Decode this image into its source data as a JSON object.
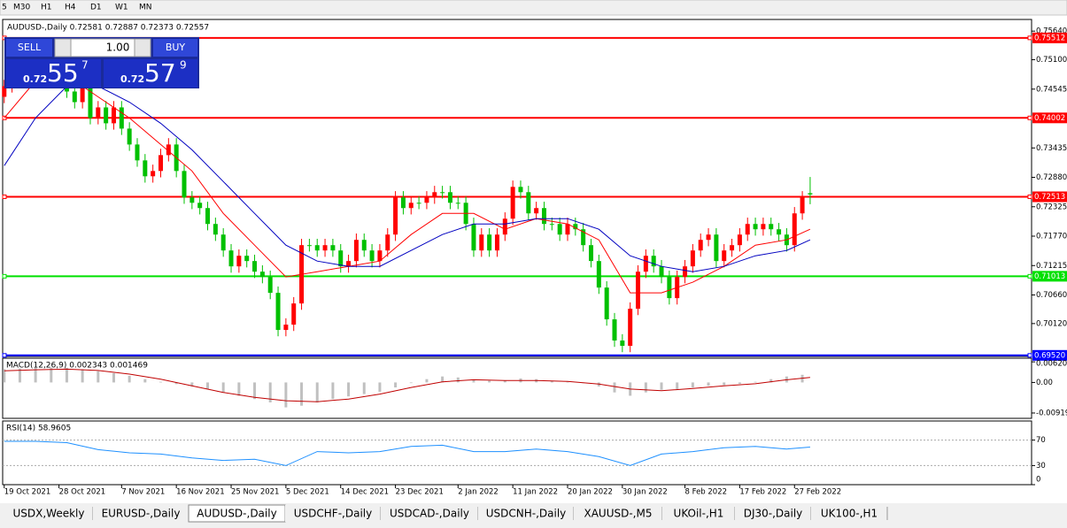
{
  "toolbar": {
    "buttons": [
      "5",
      "M30",
      "H1",
      "H4",
      "D1",
      "W1",
      "MN"
    ]
  },
  "trade_panel": {
    "sell": "SELL",
    "lot": "1.00",
    "buy": "BUY",
    "sell_prefix": "0.72",
    "sell_big": "55",
    "sell_small": "7",
    "buy_prefix": "0.72",
    "buy_big": "57",
    "buy_small": "9"
  },
  "tabs": [
    "USDX,Weekly",
    "EURUSD-,Daily",
    "AUDUSD-,Daily",
    "USDCHF-,Daily",
    "USDCAD-,Daily",
    "USDCNH-,Daily",
    "XAUUSD-,M5",
    "UKOil-,H1",
    "DJ30-,Daily",
    "UK100-,H1"
  ],
  "active_tab": 2,
  "chart_data": [
    {
      "type": "candlestick",
      "title": "AUDUSD-,Daily  0.72581 0.72887 0.72373 0.72557",
      "up_color": "#ff0000",
      "down_color": "#00c000",
      "xlim": [
        -0.2,
        131.3
      ],
      "ylim": [
        0.695,
        0.7586
      ],
      "yticks": [
        {
          "value": 0.7564,
          "label": "0.75640"
        },
        {
          "value": 0.751,
          "label": "0.75100"
        },
        0.74545,
        0.73435,
        {
          "value": 0.7288,
          "label": "0.72880"
        },
        0.72325,
        {
          "value": 0.7177,
          "label": "0.71770"
        },
        0.71215,
        {
          "value": 0.7066,
          "label": "0.70660"
        },
        {
          "value": 0.7012,
          "label": "0.70120"
        }
      ],
      "xticks": [
        {
          "value": 0,
          "label": "19 Oct 2021"
        },
        {
          "value": 7,
          "label": "28 Oct 2021"
        },
        {
          "value": 15,
          "label": "7 Nov 2021"
        },
        {
          "value": 22,
          "label": "16 Nov 2021"
        },
        {
          "value": 29,
          "label": "25 Nov 2021"
        },
        {
          "value": 36,
          "label": "5 Dec 2021"
        },
        {
          "value": 43,
          "label": "14 Dec 2021"
        },
        {
          "value": 50,
          "label": "23 Dec 2021"
        },
        {
          "value": 58,
          "label": "2 Jan 2022"
        },
        {
          "value": 65,
          "label": "11 Jan 2022"
        },
        {
          "value": 72,
          "label": "20 Jan 2022"
        },
        {
          "value": 79,
          "label": "30 Jan 2022"
        },
        {
          "value": 87,
          "label": "8 Feb 2022"
        },
        {
          "value": 94,
          "label": "17 Feb 2022"
        },
        {
          "value": 101,
          "label": "27 Feb 2022"
        }
      ],
      "levels": [
        {
          "value": 0.75512,
          "label": "0.75512",
          "color": "#ff0000"
        },
        {
          "value": 0.74002,
          "label": "0.74002",
          "color": "#ff0000"
        },
        {
          "value": 0.72513,
          "label": "0.72513",
          "color": "#ff0000"
        },
        {
          "value": 0.71013,
          "label": "0.71013",
          "color": "#00e000"
        },
        {
          "value": 0.6952,
          "label": "0.69520",
          "color": "#0000ff"
        }
      ],
      "candles": [
        [
          0.744,
          0.7472,
          0.7428,
          0.746
        ],
        [
          0.746,
          0.7487,
          0.7448,
          0.7475
        ],
        [
          0.7475,
          0.7502,
          0.7463,
          0.749
        ],
        [
          0.749,
          0.7502,
          0.7458,
          0.747
        ],
        [
          0.747,
          0.7502,
          0.7458,
          0.749
        ],
        [
          0.749,
          0.7512,
          0.7478,
          0.75
        ],
        [
          0.75,
          0.7512,
          0.7468,
          0.748
        ],
        [
          0.748,
          0.7512,
          0.7468,
          0.75
        ],
        [
          0.75,
          0.7512,
          0.7438,
          0.745
        ],
        [
          0.745,
          0.7462,
          0.7418,
          0.743
        ],
        [
          0.743,
          0.7482,
          0.7418,
          0.747
        ],
        [
          0.747,
          0.7482,
          0.7388,
          0.74
        ],
        [
          0.74,
          0.7432,
          0.7388,
          0.742
        ],
        [
          0.742,
          0.7432,
          0.7378,
          0.739
        ],
        [
          0.739,
          0.7432,
          0.7378,
          0.742
        ],
        [
          0.742,
          0.7432,
          0.7368,
          0.738
        ],
        [
          0.738,
          0.7392,
          0.7338,
          0.735
        ],
        [
          0.735,
          0.7362,
          0.7308,
          0.732
        ],
        [
          0.732,
          0.7332,
          0.7278,
          0.729
        ],
        [
          0.729,
          0.7312,
          0.7278,
          0.73
        ],
        [
          0.73,
          0.7342,
          0.7288,
          0.733
        ],
        [
          0.733,
          0.7362,
          0.7318,
          0.735
        ],
        [
          0.735,
          0.7362,
          0.7288,
          0.73
        ],
        [
          0.73,
          0.7312,
          0.7238,
          0.725
        ],
        [
          0.725,
          0.7262,
          0.7228,
          0.724
        ],
        [
          0.724,
          0.7252,
          0.7218,
          0.723
        ],
        [
          0.723,
          0.7242,
          0.7188,
          0.72
        ],
        [
          0.72,
          0.7212,
          0.7168,
          0.718
        ],
        [
          0.718,
          0.7192,
          0.7138,
          0.715
        ],
        [
          0.715,
          0.7162,
          0.7108,
          0.712
        ],
        [
          0.712,
          0.7152,
          0.7108,
          0.714
        ],
        [
          0.714,
          0.7152,
          0.7118,
          0.713
        ],
        [
          0.713,
          0.7142,
          0.7098,
          0.711
        ],
        [
          0.711,
          0.7122,
          0.7088,
          0.71
        ],
        [
          0.71,
          0.7112,
          0.7058,
          0.707
        ],
        [
          0.707,
          0.7082,
          0.6988,
          0.7
        ],
        [
          0.7,
          0.7022,
          0.6988,
          0.701
        ],
        [
          0.701,
          0.7062,
          0.6998,
          0.705
        ],
        [
          0.705,
          0.7172,
          0.7038,
          0.716
        ],
        [
          0.716,
          0.7172,
          0.7148,
          0.716
        ],
        [
          0.716,
          0.7172,
          0.7138,
          0.715
        ],
        [
          0.715,
          0.7172,
          0.7138,
          0.716
        ],
        [
          0.716,
          0.7172,
          0.7138,
          0.715
        ],
        [
          0.715,
          0.7162,
          0.7108,
          0.712
        ],
        [
          0.712,
          0.7142,
          0.7108,
          0.713
        ],
        [
          0.713,
          0.7182,
          0.7118,
          0.717
        ],
        [
          0.717,
          0.7182,
          0.7138,
          0.715
        ],
        [
          0.715,
          0.7162,
          0.7118,
          0.713
        ],
        [
          0.713,
          0.7162,
          0.7118,
          0.715
        ],
        [
          0.715,
          0.7192,
          0.7138,
          0.718
        ],
        [
          0.718,
          0.7262,
          0.7168,
          0.725
        ],
        [
          0.725,
          0.7262,
          0.7218,
          0.723
        ],
        [
          0.723,
          0.7252,
          0.7218,
          0.724
        ],
        [
          0.724,
          0.7252,
          0.7228,
          0.724
        ],
        [
          0.724,
          0.7262,
          0.7228,
          0.725
        ],
        [
          0.725,
          0.7272,
          0.7238,
          0.726
        ],
        [
          0.726,
          0.7272,
          0.7248,
          0.726
        ],
        [
          0.726,
          0.7272,
          0.7228,
          0.724
        ],
        [
          0.724,
          0.7252,
          0.7228,
          0.724
        ],
        [
          0.724,
          0.7252,
          0.7188,
          0.72
        ],
        [
          0.72,
          0.7212,
          0.7138,
          0.715
        ],
        [
          0.715,
          0.7192,
          0.7138,
          0.718
        ],
        [
          0.718,
          0.7192,
          0.7138,
          0.715
        ],
        [
          0.715,
          0.7192,
          0.7138,
          0.718
        ],
        [
          0.718,
          0.7222,
          0.7168,
          0.721
        ],
        [
          0.721,
          0.7282,
          0.7198,
          0.727
        ],
        [
          0.727,
          0.7282,
          0.7248,
          0.726
        ],
        [
          0.726,
          0.7272,
          0.7208,
          0.722
        ],
        [
          0.722,
          0.7242,
          0.7208,
          0.723
        ],
        [
          0.723,
          0.7242,
          0.7188,
          0.72
        ],
        [
          0.72,
          0.7212,
          0.7188,
          0.72
        ],
        [
          0.72,
          0.7212,
          0.7168,
          0.718
        ],
        [
          0.718,
          0.7212,
          0.7168,
          0.72
        ],
        [
          0.72,
          0.7212,
          0.7178,
          0.719
        ],
        [
          0.719,
          0.7202,
          0.7148,
          0.716
        ],
        [
          0.716,
          0.7172,
          0.7118,
          0.713
        ],
        [
          0.713,
          0.7142,
          0.7068,
          0.708
        ],
        [
          0.708,
          0.7092,
          0.7008,
          0.702
        ],
        [
          0.702,
          0.7032,
          0.6968,
          0.698
        ],
        [
          0.698,
          0.6992,
          0.6958,
          0.697
        ],
        [
          0.697,
          0.7052,
          0.6958,
          0.704
        ],
        [
          0.704,
          0.7122,
          0.7028,
          0.711
        ],
        [
          0.711,
          0.7152,
          0.7098,
          0.714
        ],
        [
          0.714,
          0.7152,
          0.7108,
          0.712
        ],
        [
          0.712,
          0.7132,
          0.7088,
          0.71
        ],
        [
          0.71,
          0.7112,
          0.7048,
          0.706
        ],
        [
          0.706,
          0.7112,
          0.7048,
          0.71
        ],
        [
          0.71,
          0.7132,
          0.7088,
          0.712
        ],
        [
          0.712,
          0.7162,
          0.7108,
          0.715
        ],
        [
          0.715,
          0.7182,
          0.7138,
          0.717
        ],
        [
          0.717,
          0.7192,
          0.7158,
          0.718
        ],
        [
          0.718,
          0.7192,
          0.7118,
          0.713
        ],
        [
          0.713,
          0.7162,
          0.7118,
          0.715
        ],
        [
          0.715,
          0.7172,
          0.7138,
          0.716
        ],
        [
          0.716,
          0.7192,
          0.7148,
          0.718
        ],
        [
          0.718,
          0.7212,
          0.7168,
          0.72
        ],
        [
          0.72,
          0.7212,
          0.7178,
          0.719
        ],
        [
          0.719,
          0.7212,
          0.7178,
          0.72
        ],
        [
          0.72,
          0.7212,
          0.7178,
          0.719
        ],
        [
          0.719,
          0.7202,
          0.7168,
          0.718
        ],
        [
          0.718,
          0.7192,
          0.7148,
          0.716
        ],
        [
          0.716,
          0.7232,
          0.7148,
          0.722
        ],
        [
          0.722,
          0.7262,
          0.7208,
          0.725
        ],
        [
          0.72581,
          0.72887,
          0.72373,
          0.72557
        ]
      ],
      "ma_x": [
        0,
        4,
        8,
        12,
        16,
        20,
        24,
        28,
        32,
        36,
        40,
        44,
        48,
        52,
        56,
        60,
        64,
        68,
        72,
        76,
        80,
        84,
        88,
        92,
        96,
        100,
        103
      ],
      "moving_averages": [
        {
          "color": "#ff0000",
          "values": [
            0.74,
            0.747,
            0.748,
            0.744,
            0.74,
            0.735,
            0.73,
            0.722,
            0.716,
            0.71,
            0.711,
            0.712,
            0.713,
            0.718,
            0.722,
            0.722,
            0.719,
            0.721,
            0.72,
            0.717,
            0.707,
            0.707,
            0.709,
            0.712,
            0.716,
            0.717,
            0.719
          ]
        },
        {
          "color": "#0000c0",
          "values": [
            0.731,
            0.74,
            0.746,
            0.746,
            0.743,
            0.739,
            0.734,
            0.728,
            0.722,
            0.716,
            0.713,
            0.712,
            0.712,
            0.715,
            0.718,
            0.72,
            0.72,
            0.721,
            0.721,
            0.719,
            0.714,
            0.712,
            0.711,
            0.712,
            0.714,
            0.715,
            0.717
          ]
        }
      ]
    },
    {
      "type": "macd",
      "title": "MACD(12,26,9) 0.002343 0.001469",
      "ylim": [
        -0.0108,
        0.0073
      ],
      "yticks": [
        0.006201,
        {
          "value": 0,
          "label": "0.00"
        },
        -0.009195
      ],
      "histogram_x": [
        0,
        2,
        4,
        6,
        8,
        10,
        12,
        14,
        16,
        18,
        20,
        22,
        24,
        26,
        28,
        30,
        32,
        34,
        36,
        38,
        40,
        42,
        44,
        46,
        48,
        50,
        52,
        54,
        56,
        58,
        60,
        62,
        64,
        66,
        68,
        70,
        72,
        74,
        76,
        78,
        80,
        82,
        84,
        86,
        88,
        90,
        92,
        94,
        96,
        98,
        100,
        102
      ],
      "histogram": {
        "color": "#c0c0c0",
        "values": [
          0.004,
          0.0042,
          0.0044,
          0.0045,
          0.0044,
          0.004,
          0.0034,
          0.0028,
          0.002,
          0.001,
          0.0002,
          -0.0005,
          -0.0012,
          -0.002,
          -0.003,
          -0.004,
          -0.005,
          -0.006,
          -0.0075,
          -0.007,
          -0.006,
          -0.005,
          -0.0042,
          -0.0035,
          -0.0028,
          -0.0015,
          -0.0002,
          0.001,
          0.0018,
          0.0015,
          0.0008,
          0.0005,
          0.0006,
          0.0012,
          0.001,
          0.0005,
          0.0002,
          -0.0002,
          -0.0012,
          -0.003,
          -0.004,
          -0.003,
          -0.0022,
          -0.002,
          -0.0015,
          -0.001,
          -0.0008,
          -0.0004,
          0.0002,
          0.001,
          0.0018,
          0.0023
        ]
      },
      "signal_x": [
        0,
        4,
        8,
        12,
        16,
        20,
        24,
        28,
        32,
        36,
        40,
        44,
        48,
        52,
        56,
        60,
        64,
        68,
        72,
        76,
        80,
        84,
        88,
        92,
        96,
        100,
        103
      ],
      "signal": {
        "color": "#c00000",
        "values": [
          0.0035,
          0.0038,
          0.004,
          0.0036,
          0.0025,
          0.001,
          -0.001,
          -0.003,
          -0.0045,
          -0.0055,
          -0.0058,
          -0.005,
          -0.0035,
          -0.0015,
          0.0002,
          0.0008,
          0.0006,
          0.0006,
          0.0003,
          -0.0005,
          -0.002,
          -0.0025,
          -0.0018,
          -0.001,
          -0.0004,
          0.0008,
          0.0015
        ]
      }
    },
    {
      "type": "rsi",
      "title": "RSI(14) 58.9605",
      "ylim": [
        0,
        100
      ],
      "yticks": [
        70,
        30,
        0
      ],
      "color": "#1e90ff",
      "x": [
        0,
        4,
        8,
        12,
        16,
        20,
        24,
        28,
        32,
        36,
        40,
        44,
        48,
        52,
        56,
        60,
        64,
        68,
        72,
        76,
        80,
        84,
        88,
        92,
        96,
        100,
        103
      ],
      "values": [
        68,
        68,
        66,
        55,
        50,
        48,
        42,
        38,
        40,
        30,
        52,
        50,
        52,
        60,
        62,
        52,
        52,
        56,
        52,
        44,
        30,
        48,
        52,
        58,
        60,
        56,
        58.96
      ]
    }
  ]
}
